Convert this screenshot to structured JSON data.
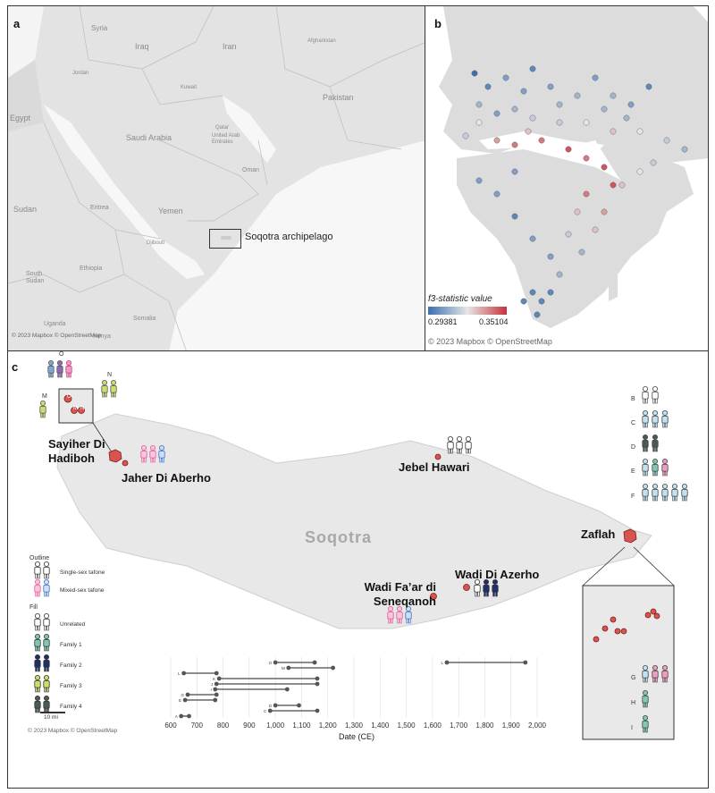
{
  "panel_a": {
    "label": "a",
    "countries": [
      "Syria",
      "Iraq",
      "Iran",
      "Afghanistan",
      "Jordan",
      "Kuwait",
      "Pakistan",
      "Egypt",
      "Saudi Arabia",
      "Qatar",
      "United Arab Emirates",
      "Oman",
      "Sudan",
      "Eritrea",
      "Yemen",
      "Ethiopia",
      "Djibouti",
      "South Sudan",
      "Somalia",
      "Uganda",
      "Kenya"
    ],
    "callout": "Soqotra archipelago",
    "credit": "© 2023 Mapbox © OpenStreetMap"
  },
  "panel_b": {
    "label": "b",
    "legend_title": "f3-statistic value",
    "legend_min": "0.29381",
    "legend_max": "0.35104",
    "legend_color_low": "#3b6fb0",
    "legend_color_high": "#c8323a",
    "credit": "© 2023 Mapbox © OpenStreetMap"
  },
  "panel_c": {
    "label": "c",
    "island_name": "Soqotra",
    "sites": [
      "Sayiher Di Hadiboh",
      "Jaher Di Aberho",
      "Jebel Hawari",
      "Zaflah",
      "Wadi Fa’ar di Seneqanoh",
      "Wadi Di Azerho"
    ],
    "site_letters_inset": [
      "O",
      "M",
      "N"
    ],
    "group_letters_left": [
      "O",
      "N",
      "M"
    ],
    "group_letters_right": [
      "B",
      "C",
      "D",
      "E",
      "F",
      "G",
      "H",
      "I"
    ],
    "legend": {
      "outline_title": "Outline",
      "outline_items": [
        "Single-sex tafone",
        "Mixed-sex tafone"
      ],
      "fill_title": "Fill",
      "fill_items": [
        "Unrelated",
        "Family 1",
        "Family 2",
        "Family 3",
        "Family 4"
      ],
      "fill_colors": [
        "#ffffff",
        "#7fc8b4",
        "#1f2f6b",
        "#c8df6a",
        "#4a5a55"
      ],
      "scale": "10 mi"
    },
    "credit": "© 2023 Mapbox © OpenStreetMap",
    "chart_data": {
      "type": "range",
      "xlabel": "Date (CE)",
      "ticks": [
        "600",
        "700",
        "800",
        "900",
        "1,000",
        "1,100",
        "1,200",
        "1,300",
        "1,400",
        "1,500",
        "1,600",
        "1,700",
        "1,800",
        "1,900",
        "2,000"
      ],
      "xlim": [
        600,
        2000
      ],
      "intervals": [
        {
          "label": "O",
          "start": 1000,
          "end": 1150
        },
        {
          "label": "M",
          "start": 1050,
          "end": 1220
        },
        {
          "label": "L",
          "start": 650,
          "end": 775
        },
        {
          "label": "K",
          "start": 785,
          "end": 1160
        },
        {
          "label": "J",
          "start": 775,
          "end": 1160
        },
        {
          "label": "I",
          "start": 770,
          "end": 1045
        },
        {
          "label": "G",
          "start": 665,
          "end": 775
        },
        {
          "label": "E",
          "start": 655,
          "end": 770
        },
        {
          "label": "D",
          "start": 1000,
          "end": 1090
        },
        {
          "label": "C",
          "start": 980,
          "end": 1160
        },
        {
          "label": "A",
          "start": 640,
          "end": 670
        },
        {
          "label": "L",
          "start": 1655,
          "end": 1955
        }
      ]
    }
  }
}
